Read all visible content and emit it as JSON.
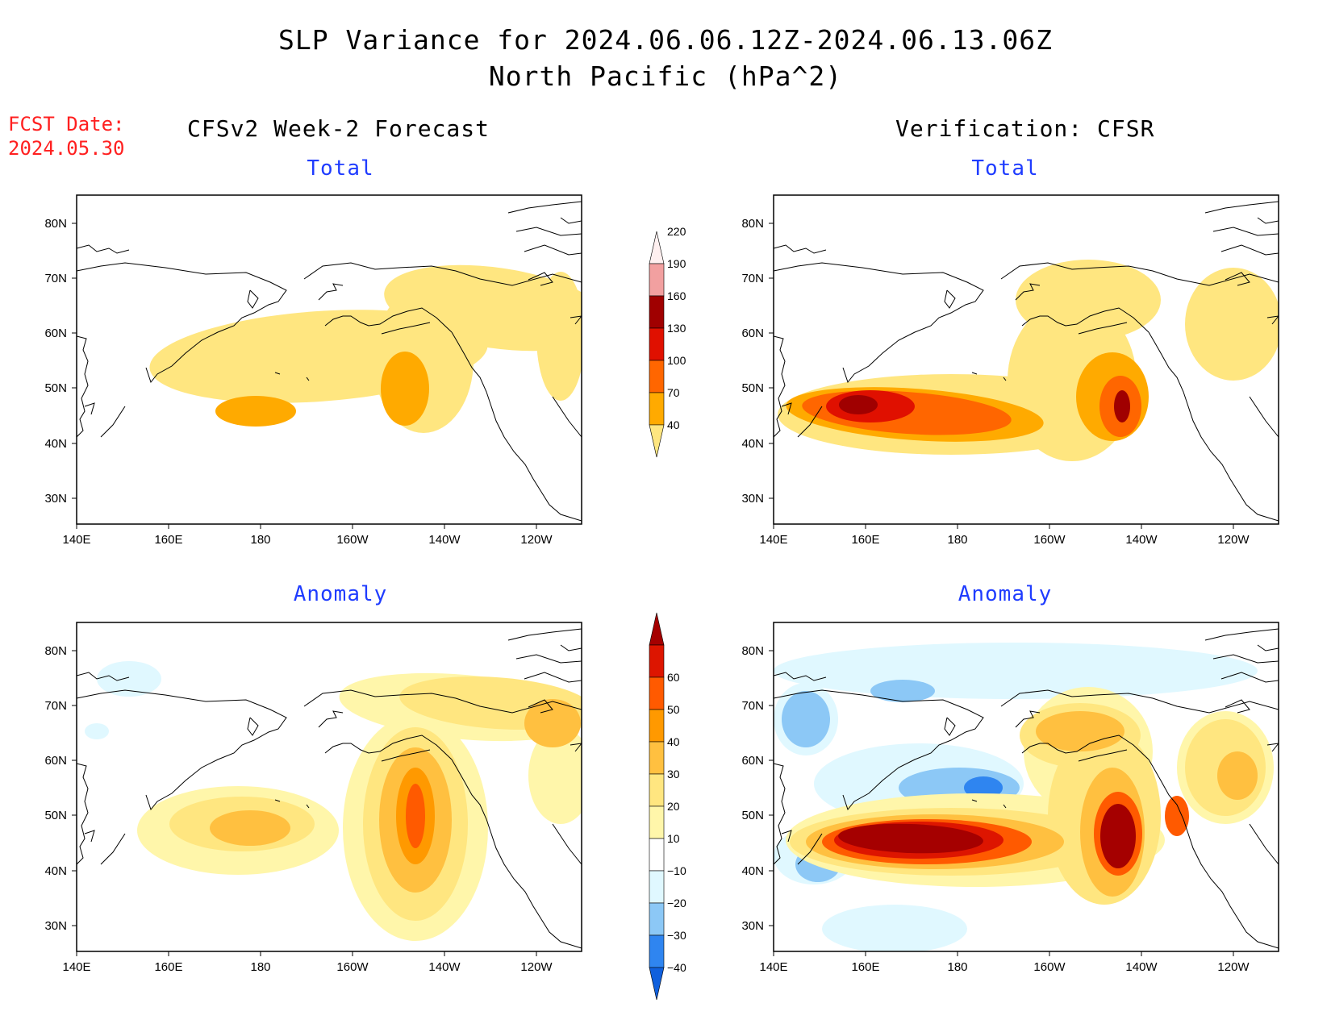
{
  "header": {
    "title_line1": "SLP Variance for 2024.06.06.12Z-2024.06.13.06Z",
    "title_line2": "North Pacific (hPa^2)",
    "fcst_label": "FCST Date:",
    "fcst_date": "2024.05.30",
    "left_column_title": "CFSv2 Week-2 Forecast",
    "right_column_title": "Verification: CFSR"
  },
  "panels": {
    "fc_total_title": "Total",
    "vf_total_title": "Total",
    "fc_anom_title": "Anomaly",
    "vf_anom_title": "Anomaly"
  },
  "axes": {
    "lat_labels": [
      "80N",
      "70N",
      "60N",
      "50N",
      "40N",
      "30N"
    ],
    "lon_labels": [
      "140E",
      "160E",
      "180",
      "160W",
      "140W",
      "120W"
    ]
  },
  "colorbars": {
    "total": {
      "levels": [
        "40",
        "70",
        "100",
        "130",
        "160",
        "190",
        "220"
      ],
      "colors": [
        "#ffe680",
        "#ffaa00",
        "#ff6600",
        "#e01000",
        "#a00000",
        "#f2a0a0",
        "#fff0f0"
      ]
    },
    "anomaly": {
      "levels": [
        "-40",
        "-30",
        "-20",
        "-10",
        "10",
        "20",
        "30",
        "40",
        "50",
        "60"
      ],
      "colors": [
        "#1060dd",
        "#2f85f0",
        "#8cc8f6",
        "#e0f8ff",
        "#ffffff",
        "#fff6aa",
        "#ffe680",
        "#ffc040",
        "#ff9900",
        "#ff5a00",
        "#dd1500",
        "#a50000"
      ]
    }
  }
}
